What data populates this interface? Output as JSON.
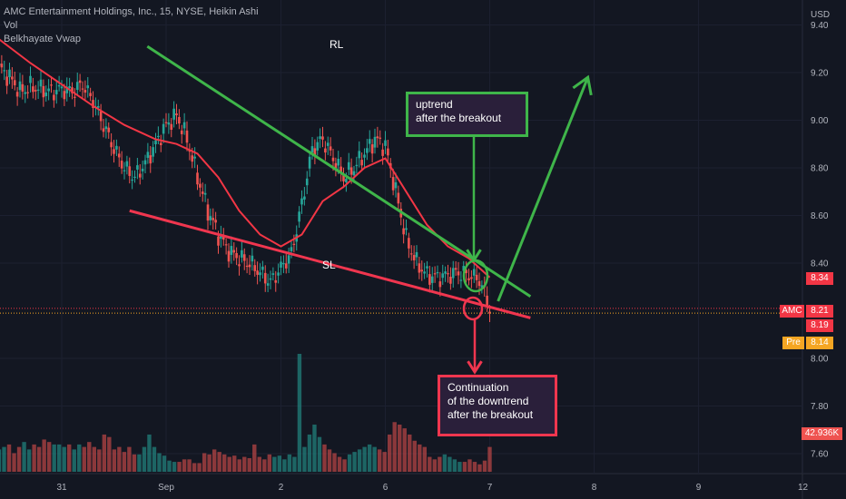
{
  "legend": {
    "symbol_line": "AMC Entertainment Holdings, Inc., 15, NYSE, Heikin Ashi",
    "vol_label": "Vol",
    "indicator_label": "Belkhayate Vwap"
  },
  "annotations": {
    "rl_label": "RL",
    "sl_label": "SL",
    "uptrend_text": "uptrend\nafter the breakout",
    "downtrend_text": "Continuation\nof the downtrend\nafter the breakout"
  },
  "badges": {
    "last_price": "8.34",
    "amc_symbol": "AMC",
    "amc_price": "8.21",
    "line_price": "8.19",
    "pre_label": "Pre",
    "pre_price": "8.14",
    "volume_value": "42.936K"
  },
  "colors": {
    "background": "#131722",
    "up_candle": "#26a69a",
    "down_candle": "#ef5350",
    "vwap_line": "#f23645",
    "resistance_line": "#4caf50",
    "support_line": "#f23645"
  },
  "chart_data": {
    "type": "candlestick",
    "currency_label": "USD",
    "y_ticks": [
      "9.40",
      "9.20",
      "9.00",
      "8.80",
      "8.60",
      "8.40",
      "8.00",
      "7.80",
      "7.60"
    ],
    "y_tick_values": [
      9.4,
      9.2,
      9.0,
      8.8,
      8.6,
      8.4,
      8.0,
      7.8,
      7.6
    ],
    "ylim": [
      7.52,
      9.44
    ],
    "x_ticks": [
      "31",
      "Sep",
      "2",
      "6",
      "7",
      "8",
      "9",
      "12"
    ],
    "x_tick_index": [
      0,
      10,
      21,
      31,
      41,
      51,
      61,
      71
    ],
    "x_domain": [
      -6,
      71
    ],
    "price_path": [
      [
        -6,
        9.22
      ],
      [
        -5,
        9.18
      ],
      [
        -4,
        9.12
      ],
      [
        -3,
        9.14
      ],
      [
        -2,
        9.13
      ],
      [
        -1,
        9.12
      ],
      [
        0,
        9.13
      ],
      [
        1,
        9.12
      ],
      [
        2,
        9.15
      ],
      [
        3,
        9.08
      ],
      [
        4,
        8.98
      ],
      [
        5,
        8.88
      ],
      [
        6,
        8.8
      ],
      [
        7,
        8.76
      ],
      [
        8,
        8.82
      ],
      [
        9,
        8.9
      ],
      [
        10,
        8.98
      ],
      [
        11,
        9.02
      ],
      [
        12,
        8.92
      ],
      [
        13,
        8.76
      ],
      [
        14,
        8.62
      ],
      [
        15,
        8.52
      ],
      [
        16,
        8.45
      ],
      [
        17,
        8.42
      ],
      [
        18,
        8.4
      ],
      [
        19,
        8.36
      ],
      [
        20,
        8.32
      ],
      [
        21,
        8.38
      ],
      [
        22,
        8.44
      ],
      [
        23,
        8.65
      ],
      [
        24,
        8.88
      ],
      [
        25,
        8.92
      ],
      [
        26,
        8.84
      ],
      [
        27,
        8.76
      ],
      [
        28,
        8.8
      ],
      [
        29,
        8.86
      ],
      [
        30,
        8.92
      ],
      [
        31,
        8.89
      ],
      [
        32,
        8.7
      ],
      [
        33,
        8.5
      ],
      [
        34,
        8.4
      ],
      [
        35,
        8.35
      ],
      [
        36,
        8.34
      ],
      [
        37,
        8.35
      ],
      [
        38,
        8.36
      ],
      [
        39,
        8.35
      ],
      [
        40,
        8.33
      ],
      [
        41,
        8.21
      ]
    ],
    "vwap_path": [
      [
        -6,
        9.34
      ],
      [
        -3,
        9.24
      ],
      [
        0,
        9.15
      ],
      [
        3,
        9.06
      ],
      [
        6,
        8.98
      ],
      [
        9,
        8.92
      ],
      [
        11,
        8.9
      ],
      [
        13,
        8.86
      ],
      [
        15,
        8.76
      ],
      [
        17,
        8.62
      ],
      [
        19,
        8.52
      ],
      [
        21,
        8.47
      ],
      [
        23,
        8.52
      ],
      [
        25,
        8.66
      ],
      [
        27,
        8.72
      ],
      [
        29,
        8.8
      ],
      [
        31,
        8.84
      ],
      [
        33,
        8.7
      ],
      [
        35,
        8.56
      ],
      [
        37,
        8.47
      ],
      [
        39,
        8.42
      ],
      [
        41,
        8.34
      ]
    ],
    "resistance_line": {
      "x": [
        8.2,
        44.9
      ],
      "y": [
        9.31,
        8.26
      ]
    },
    "support_line": {
      "x": [
        6.5,
        44.9
      ],
      "y": [
        8.62,
        8.17
      ]
    },
    "breakout_up_arrow": {
      "x": [
        41.8,
        50.4
      ],
      "y": [
        8.24,
        9.18
      ]
    },
    "volume_scale_max": 95,
    "volume": [
      18,
      20,
      22,
      15,
      20,
      24,
      18,
      22,
      20,
      26,
      24,
      22,
      22,
      20,
      22,
      18,
      22,
      20,
      24,
      20,
      18,
      30,
      28,
      18,
      20,
      16,
      20,
      14,
      14,
      20,
      30,
      20,
      15,
      13,
      9,
      8,
      8,
      10,
      10,
      7,
      7,
      15,
      14,
      18,
      16,
      14,
      12,
      13,
      10,
      12,
      11,
      22,
      12,
      10,
      14,
      12,
      13,
      10,
      14,
      12,
      95,
      20,
      30,
      38,
      28,
      22,
      18,
      15,
      12,
      10,
      14,
      16,
      18,
      20,
      22,
      20,
      18,
      16,
      30,
      40,
      38,
      35,
      30,
      25,
      22,
      20,
      12,
      10,
      12,
      14,
      12,
      10,
      8,
      8,
      10,
      8,
      6,
      9,
      20
    ]
  }
}
